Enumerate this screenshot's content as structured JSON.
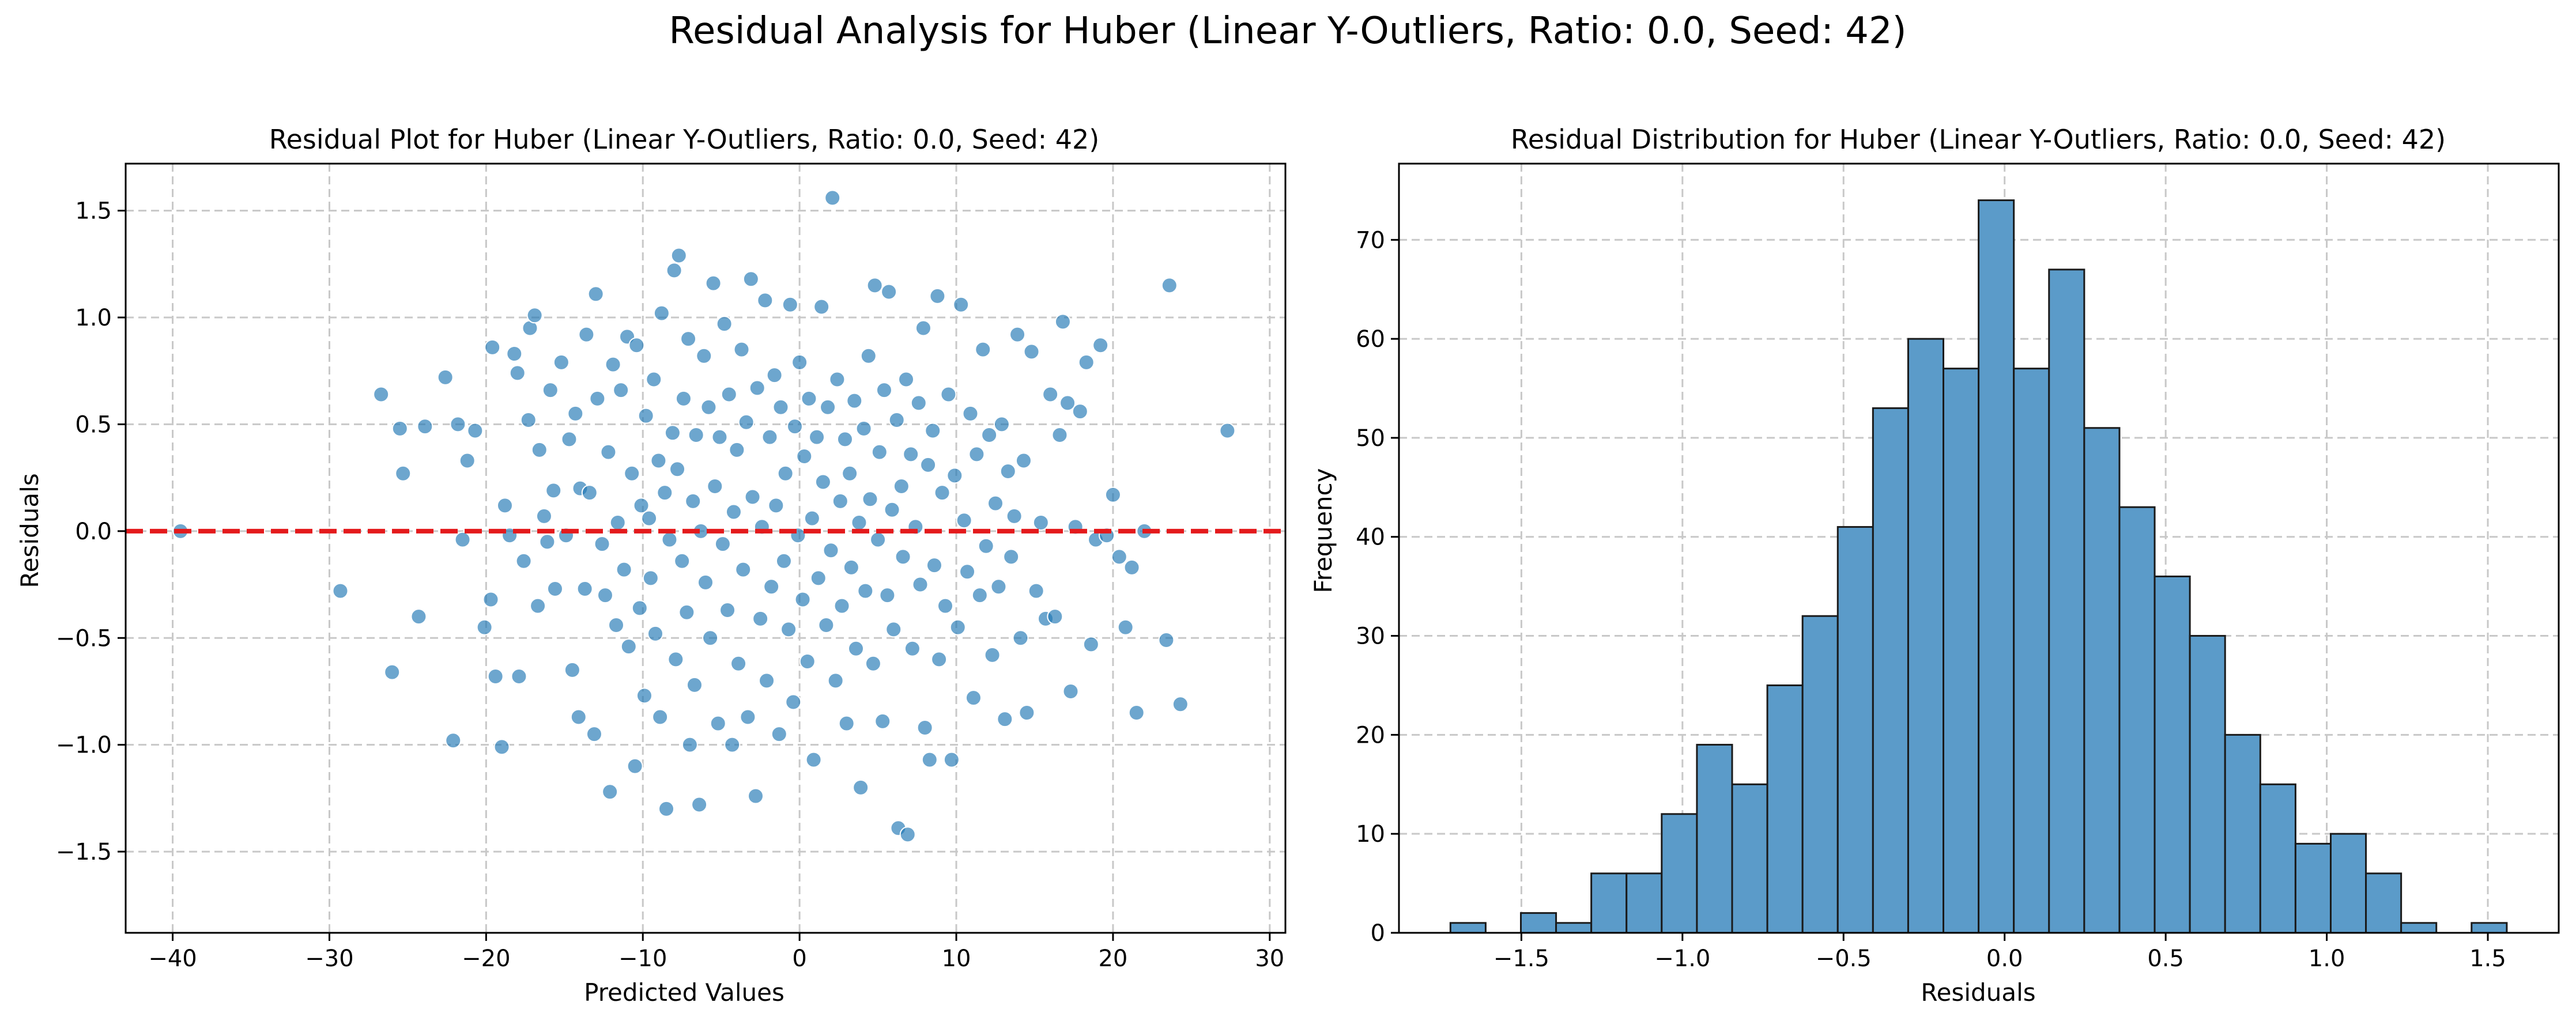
{
  "figure": {
    "suptitle": "Residual Analysis for Huber (Linear Y-Outliers, Ratio: 0.0, Seed: 42)"
  },
  "colors": {
    "scatter_point": "#1f77b4",
    "zero_line": "#e41a1c",
    "histogram_bar": "#5b9bc9",
    "grid": "#c8c8c8"
  },
  "chart_data": [
    {
      "type": "scatter",
      "title": "Residual Plot for Huber (Linear Y-Outliers, Ratio: 0.0, Seed: 42)",
      "xlabel": "Predicted Values",
      "ylabel": "Residuals",
      "xlim": [
        -43,
        31
      ],
      "ylim": [
        -1.88,
        1.72
      ],
      "xticks": [
        -40,
        -30,
        -20,
        -10,
        0,
        10,
        20,
        30
      ],
      "xtick_labels": [
        "−40",
        "−30",
        "−20",
        "−10",
        "0",
        "10",
        "20",
        "30"
      ],
      "yticks": [
        -1.5,
        -1.0,
        -0.5,
        0.0,
        0.5,
        1.0,
        1.5
      ],
      "ytick_labels": [
        "−1.5",
        "−1.0",
        "−0.5",
        "0.0",
        "0.5",
        "1.0",
        "1.5"
      ],
      "grid": true,
      "reference_line": {
        "y": 0.0,
        "style": "dashed"
      },
      "points": [
        [
          -39.5,
          0.0
        ],
        [
          -29.3,
          -0.28
        ],
        [
          -26.7,
          0.64
        ],
        [
          -26.0,
          -0.66
        ],
        [
          -25.5,
          0.48
        ],
        [
          -25.3,
          0.27
        ],
        [
          -24.3,
          -0.4
        ],
        [
          -23.9,
          0.49
        ],
        [
          -22.6,
          0.72
        ],
        [
          -22.1,
          -0.98
        ],
        [
          -21.8,
          0.5
        ],
        [
          -21.5,
          -0.04
        ],
        [
          -21.2,
          0.33
        ],
        [
          -20.7,
          0.47
        ],
        [
          -20.1,
          -0.45
        ],
        [
          -19.7,
          -0.32
        ],
        [
          -19.6,
          0.86
        ],
        [
          -19.4,
          -0.68
        ],
        [
          -19.0,
          -1.01
        ],
        [
          -18.8,
          0.12
        ],
        [
          -18.5,
          -0.02
        ],
        [
          -18.2,
          0.83
        ],
        [
          -18.0,
          0.74
        ],
        [
          -17.9,
          -0.68
        ],
        [
          -17.6,
          -0.14
        ],
        [
          -17.3,
          0.52
        ],
        [
          -17.2,
          0.95
        ],
        [
          -16.9,
          1.01
        ],
        [
          -16.7,
          -0.35
        ],
        [
          -16.6,
          0.38
        ],
        [
          -16.3,
          0.07
        ],
        [
          -16.1,
          -0.05
        ],
        [
          -15.9,
          0.66
        ],
        [
          -15.7,
          0.19
        ],
        [
          -15.6,
          -0.27
        ],
        [
          -15.2,
          0.79
        ],
        [
          -14.9,
          -0.02
        ],
        [
          -14.7,
          0.43
        ],
        [
          -14.5,
          -0.65
        ],
        [
          -14.3,
          0.55
        ],
        [
          -14.1,
          -0.87
        ],
        [
          -14.0,
          0.2
        ],
        [
          -13.7,
          -0.27
        ],
        [
          -13.6,
          0.92
        ],
        [
          -13.4,
          0.18
        ],
        [
          -13.1,
          -0.95
        ],
        [
          -13.0,
          1.11
        ],
        [
          -12.9,
          0.62
        ],
        [
          -12.6,
          -0.06
        ],
        [
          -12.4,
          -0.3
        ],
        [
          -12.2,
          0.37
        ],
        [
          -12.1,
          -1.22
        ],
        [
          -11.9,
          0.78
        ],
        [
          -11.7,
          -0.44
        ],
        [
          -11.6,
          0.04
        ],
        [
          -11.4,
          0.66
        ],
        [
          -11.2,
          -0.18
        ],
        [
          -11.0,
          0.91
        ],
        [
          -10.9,
          -0.54
        ],
        [
          -10.7,
          0.27
        ],
        [
          -10.5,
          -1.1
        ],
        [
          -10.4,
          0.87
        ],
        [
          -10.2,
          -0.36
        ],
        [
          -10.1,
          0.12
        ],
        [
          -9.9,
          -0.77
        ],
        [
          -9.8,
          0.54
        ],
        [
          -9.6,
          0.06
        ],
        [
          -9.5,
          -0.22
        ],
        [
          -9.3,
          0.71
        ],
        [
          -9.2,
          -0.48
        ],
        [
          -9.0,
          0.33
        ],
        [
          -8.9,
          -0.87
        ],
        [
          -8.8,
          1.02
        ],
        [
          -8.6,
          0.18
        ],
        [
          -8.5,
          -1.3
        ],
        [
          -8.3,
          -0.04
        ],
        [
          -8.1,
          0.46
        ],
        [
          -8.0,
          1.22
        ],
        [
          -7.9,
          -0.6
        ],
        [
          -7.8,
          0.29
        ],
        [
          -7.7,
          1.29
        ],
        [
          -7.5,
          -0.14
        ],
        [
          -7.4,
          0.62
        ],
        [
          -7.2,
          -0.38
        ],
        [
          -7.1,
          0.9
        ],
        [
          -7.0,
          -1.0
        ],
        [
          -6.8,
          0.14
        ],
        [
          -6.7,
          -0.72
        ],
        [
          -6.6,
          0.45
        ],
        [
          -6.4,
          -1.28
        ],
        [
          -6.3,
          0.0
        ],
        [
          -6.1,
          0.82
        ],
        [
          -6.0,
          -0.24
        ],
        [
          -5.8,
          0.58
        ],
        [
          -5.7,
          -0.5
        ],
        [
          -5.5,
          1.16
        ],
        [
          -5.4,
          0.21
        ],
        [
          -5.2,
          -0.9
        ],
        [
          -5.1,
          0.44
        ],
        [
          -4.9,
          -0.06
        ],
        [
          -4.8,
          0.97
        ],
        [
          -4.6,
          -0.37
        ],
        [
          -4.5,
          0.64
        ],
        [
          -4.3,
          -1.0
        ],
        [
          -4.2,
          0.09
        ],
        [
          -4.0,
          0.38
        ],
        [
          -3.9,
          -0.62
        ],
        [
          -3.7,
          0.85
        ],
        [
          -3.6,
          -0.18
        ],
        [
          -3.4,
          0.51
        ],
        [
          -3.3,
          -0.87
        ],
        [
          -3.1,
          1.18
        ],
        [
          -3.0,
          0.16
        ],
        [
          -2.8,
          -1.24
        ],
        [
          -2.7,
          0.67
        ],
        [
          -2.5,
          -0.41
        ],
        [
          -2.4,
          0.02
        ],
        [
          -2.2,
          1.08
        ],
        [
          -2.1,
          -0.7
        ],
        [
          -1.9,
          0.44
        ],
        [
          -1.8,
          -0.26
        ],
        [
          -1.6,
          0.73
        ],
        [
          -1.5,
          0.12
        ],
        [
          -1.3,
          -0.95
        ],
        [
          -1.2,
          0.58
        ],
        [
          -1.0,
          -0.14
        ],
        [
          -0.9,
          0.27
        ],
        [
          -0.7,
          -0.46
        ],
        [
          -0.6,
          1.06
        ],
        [
          -0.4,
          -0.8
        ],
        [
          -0.3,
          0.49
        ],
        [
          -0.1,
          -0.02
        ],
        [
          0.0,
          0.79
        ],
        [
          0.2,
          -0.32
        ],
        [
          0.3,
          0.35
        ],
        [
          0.5,
          -0.61
        ],
        [
          0.6,
          0.62
        ],
        [
          0.8,
          0.06
        ],
        [
          0.9,
          -1.07
        ],
        [
          1.1,
          0.44
        ],
        [
          1.2,
          -0.22
        ],
        [
          1.4,
          1.05
        ],
        [
          1.5,
          0.23
        ],
        [
          1.7,
          -0.44
        ],
        [
          1.8,
          0.58
        ],
        [
          2.0,
          -0.09
        ],
        [
          2.1,
          1.56
        ],
        [
          2.3,
          -0.7
        ],
        [
          2.4,
          0.71
        ],
        [
          2.6,
          0.14
        ],
        [
          2.7,
          -0.35
        ],
        [
          2.9,
          0.43
        ],
        [
          3.0,
          -0.9
        ],
        [
          3.2,
          0.27
        ],
        [
          3.3,
          -0.17
        ],
        [
          3.5,
          0.61
        ],
        [
          3.6,
          -0.55
        ],
        [
          3.8,
          0.04
        ],
        [
          3.9,
          -1.2
        ],
        [
          4.1,
          0.48
        ],
        [
          4.2,
          -0.28
        ],
        [
          4.4,
          0.82
        ],
        [
          4.5,
          0.15
        ],
        [
          4.7,
          -0.62
        ],
        [
          4.8,
          1.15
        ],
        [
          5.0,
          -0.04
        ],
        [
          5.1,
          0.37
        ],
        [
          5.3,
          -0.89
        ],
        [
          5.4,
          0.66
        ],
        [
          5.6,
          -0.3
        ],
        [
          5.7,
          1.12
        ],
        [
          5.9,
          0.1
        ],
        [
          6.0,
          -0.46
        ],
        [
          6.2,
          0.52
        ],
        [
          6.3,
          -1.39
        ],
        [
          6.5,
          0.21
        ],
        [
          6.6,
          -0.12
        ],
        [
          6.8,
          0.71
        ],
        [
          6.9,
          -1.42
        ],
        [
          7.1,
          0.36
        ],
        [
          7.2,
          -0.55
        ],
        [
          7.4,
          0.02
        ],
        [
          7.6,
          0.6
        ],
        [
          7.7,
          -0.25
        ],
        [
          7.9,
          0.95
        ],
        [
          8.0,
          -0.92
        ],
        [
          8.2,
          0.31
        ],
        [
          8.3,
          -1.07
        ],
        [
          8.5,
          0.47
        ],
        [
          8.6,
          -0.16
        ],
        [
          8.8,
          1.1
        ],
        [
          8.9,
          -0.6
        ],
        [
          9.1,
          0.18
        ],
        [
          9.3,
          -0.35
        ],
        [
          9.5,
          0.64
        ],
        [
          9.7,
          -1.07
        ],
        [
          9.9,
          0.26
        ],
        [
          10.1,
          -0.45
        ],
        [
          10.3,
          1.06
        ],
        [
          10.5,
          0.05
        ],
        [
          10.7,
          -0.19
        ],
        [
          10.9,
          0.55
        ],
        [
          11.1,
          -0.78
        ],
        [
          11.3,
          0.36
        ],
        [
          11.5,
          -0.3
        ],
        [
          11.7,
          0.85
        ],
        [
          11.9,
          -0.07
        ],
        [
          12.1,
          0.45
        ],
        [
          12.3,
          -0.58
        ],
        [
          12.5,
          0.13
        ],
        [
          12.7,
          -0.26
        ],
        [
          12.9,
          0.5
        ],
        [
          13.1,
          -0.88
        ],
        [
          13.3,
          0.28
        ],
        [
          13.5,
          -0.12
        ],
        [
          13.7,
          0.07
        ],
        [
          13.9,
          0.92
        ],
        [
          14.1,
          -0.5
        ],
        [
          14.3,
          0.33
        ],
        [
          14.5,
          -0.85
        ],
        [
          14.8,
          0.84
        ],
        [
          15.1,
          -0.28
        ],
        [
          15.4,
          0.04
        ],
        [
          15.7,
          -0.41
        ],
        [
          16.0,
          0.64
        ],
        [
          16.3,
          -0.4
        ],
        [
          16.6,
          0.45
        ],
        [
          16.8,
          0.98
        ],
        [
          17.1,
          0.6
        ],
        [
          17.3,
          -0.75
        ],
        [
          17.6,
          0.02
        ],
        [
          17.9,
          0.56
        ],
        [
          18.3,
          0.79
        ],
        [
          18.6,
          -0.53
        ],
        [
          18.9,
          -0.04
        ],
        [
          19.2,
          0.87
        ],
        [
          19.6,
          -0.02
        ],
        [
          20.0,
          0.17
        ],
        [
          20.4,
          -0.12
        ],
        [
          20.8,
          -0.45
        ],
        [
          21.2,
          -0.17
        ],
        [
          21.5,
          -0.85
        ],
        [
          22.0,
          0.0
        ],
        [
          23.4,
          -0.51
        ],
        [
          23.6,
          1.15
        ],
        [
          24.3,
          -0.81
        ],
        [
          27.3,
          0.47
        ]
      ]
    },
    {
      "type": "bar",
      "title": "Residual Distribution for Huber (Linear Y-Outliers, Ratio: 0.0, Seed: 42)",
      "xlabel": "Residuals",
      "ylabel": "Frequency",
      "xlim": [
        -1.88,
        1.72
      ],
      "ylim": [
        0,
        77.7
      ],
      "xticks": [
        -1.5,
        -1.0,
        -0.5,
        0.0,
        0.5,
        1.0,
        1.5
      ],
      "xtick_labels": [
        "−1.5",
        "−1.0",
        "−0.5",
        "0.0",
        "0.5",
        "1.0",
        "1.5"
      ],
      "yticks": [
        0,
        10,
        20,
        30,
        40,
        50,
        60,
        70
      ],
      "ytick_labels": [
        "0",
        "10",
        "20",
        "30",
        "40",
        "50",
        "60",
        "70"
      ],
      "grid": true,
      "bin_start": -1.7202,
      "bin_width": 0.1093,
      "counts": [
        1,
        0,
        2,
        1,
        6,
        6,
        12,
        19,
        15,
        25,
        32,
        41,
        53,
        60,
        57,
        74,
        57,
        67,
        51,
        43,
        36,
        30,
        20,
        15,
        9,
        10,
        6,
        1,
        0,
        1
      ]
    }
  ]
}
